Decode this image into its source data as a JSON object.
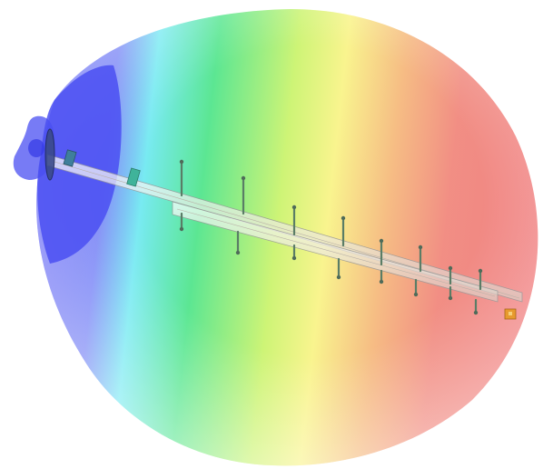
{
  "view": {
    "background": "#ffffff"
  },
  "radiation_pattern": {
    "colormap": [
      "#4b4ef2",
      "#5fe9f0",
      "#39e27a",
      "#c9f25e",
      "#f7f07a",
      "#f3a56c",
      "#ef6f6f"
    ],
    "back_lobe_color": "#4a4ff2"
  },
  "antenna": {
    "elements_upper": 8,
    "elements_lower": 8,
    "boom_color": "#f3eee6",
    "element_color": "#5a7d66",
    "feed_color": "#e79a2e"
  }
}
